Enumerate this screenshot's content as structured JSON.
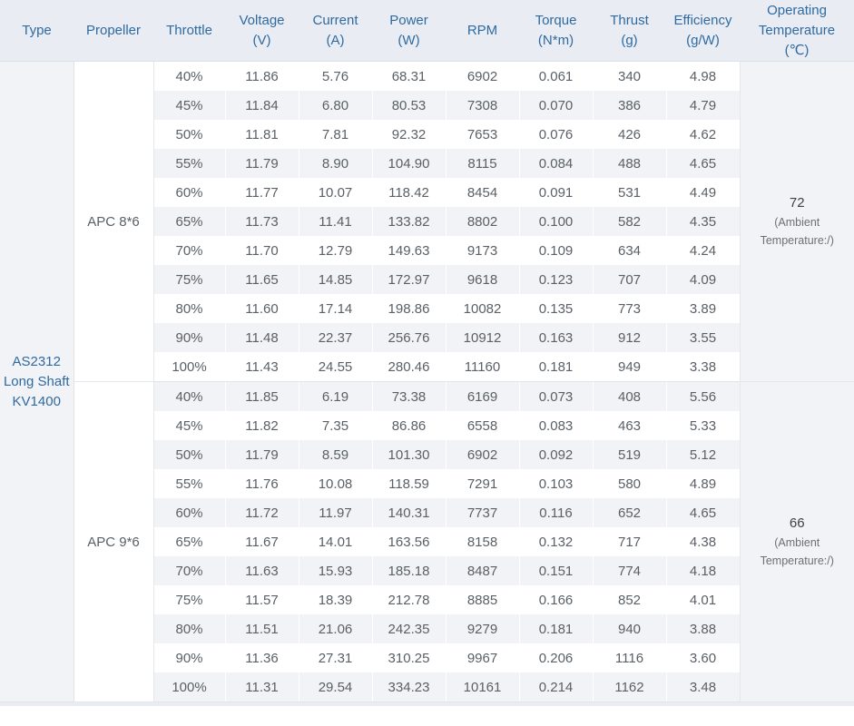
{
  "headers": [
    {
      "line1": "Type",
      "line2": ""
    },
    {
      "line1": "Propeller",
      "line2": ""
    },
    {
      "line1": "Throttle",
      "line2": ""
    },
    {
      "line1": "Voltage",
      "line2": "(V)"
    },
    {
      "line1": "Current",
      "line2": "(A)"
    },
    {
      "line1": "Power",
      "line2": "(W)"
    },
    {
      "line1": "RPM",
      "line2": ""
    },
    {
      "line1": "Torque",
      "line2": "(N*m)"
    },
    {
      "line1": "Thrust",
      "line2": "(g)"
    },
    {
      "line1": "Efficiency",
      "line2": "(g/W)"
    },
    {
      "line1": "Operating",
      "line2": "Temperature",
      "line3": "(℃)"
    }
  ],
  "motor_type": {
    "line1": "AS2312",
    "line2": "Long Shaft",
    "line3": "KV1400"
  },
  "groups": [
    {
      "propeller": "APC 8*6",
      "temperature": "72",
      "temperature_note_line1": "(Ambient",
      "temperature_note_line2": "Temperature:/)",
      "rows": [
        [
          "40%",
          "11.86",
          "5.76",
          "68.31",
          "6902",
          "0.061",
          "340",
          "4.98"
        ],
        [
          "45%",
          "11.84",
          "6.80",
          "80.53",
          "7308",
          "0.070",
          "386",
          "4.79"
        ],
        [
          "50%",
          "11.81",
          "7.81",
          "92.32",
          "7653",
          "0.076",
          "426",
          "4.62"
        ],
        [
          "55%",
          "11.79",
          "8.90",
          "104.90",
          "8115",
          "0.084",
          "488",
          "4.65"
        ],
        [
          "60%",
          "11.77",
          "10.07",
          "118.42",
          "8454",
          "0.091",
          "531",
          "4.49"
        ],
        [
          "65%",
          "11.73",
          "11.41",
          "133.82",
          "8802",
          "0.100",
          "582",
          "4.35"
        ],
        [
          "70%",
          "11.70",
          "12.79",
          "149.63",
          "9173",
          "0.109",
          "634",
          "4.24"
        ],
        [
          "75%",
          "11.65",
          "14.85",
          "172.97",
          "9618",
          "0.123",
          "707",
          "4.09"
        ],
        [
          "80%",
          "11.60",
          "17.14",
          "198.86",
          "10082",
          "0.135",
          "773",
          "3.89"
        ],
        [
          "90%",
          "11.48",
          "22.37",
          "256.76",
          "10912",
          "0.163",
          "912",
          "3.55"
        ],
        [
          "100%",
          "11.43",
          "24.55",
          "280.46",
          "11160",
          "0.181",
          "949",
          "3.38"
        ]
      ]
    },
    {
      "propeller": "APC 9*6",
      "temperature": "66",
      "temperature_note_line1": "(Ambient",
      "temperature_note_line2": "Temperature:/)",
      "rows": [
        [
          "40%",
          "11.85",
          "6.19",
          "73.38",
          "6169",
          "0.073",
          "408",
          "5.56"
        ],
        [
          "45%",
          "11.82",
          "7.35",
          "86.86",
          "6558",
          "0.083",
          "463",
          "5.33"
        ],
        [
          "50%",
          "11.79",
          "8.59",
          "101.30",
          "6902",
          "0.092",
          "519",
          "5.12"
        ],
        [
          "55%",
          "11.76",
          "10.08",
          "118.59",
          "7291",
          "0.103",
          "580",
          "4.89"
        ],
        [
          "60%",
          "11.72",
          "11.97",
          "140.31",
          "7737",
          "0.116",
          "652",
          "4.65"
        ],
        [
          "65%",
          "11.67",
          "14.01",
          "163.56",
          "8158",
          "0.132",
          "717",
          "4.38"
        ],
        [
          "70%",
          "11.63",
          "15.93",
          "185.18",
          "8487",
          "0.151",
          "774",
          "4.18"
        ],
        [
          "75%",
          "11.57",
          "18.39",
          "212.78",
          "8885",
          "0.166",
          "852",
          "4.01"
        ],
        [
          "80%",
          "11.51",
          "21.06",
          "242.35",
          "9279",
          "0.181",
          "940",
          "3.88"
        ],
        [
          "90%",
          "11.36",
          "27.31",
          "310.25",
          "9967",
          "0.206",
          "1116",
          "3.60"
        ],
        [
          "100%",
          "11.31",
          "29.54",
          "334.23",
          "10161",
          "0.214",
          "1162",
          "3.48"
        ]
      ]
    }
  ]
}
